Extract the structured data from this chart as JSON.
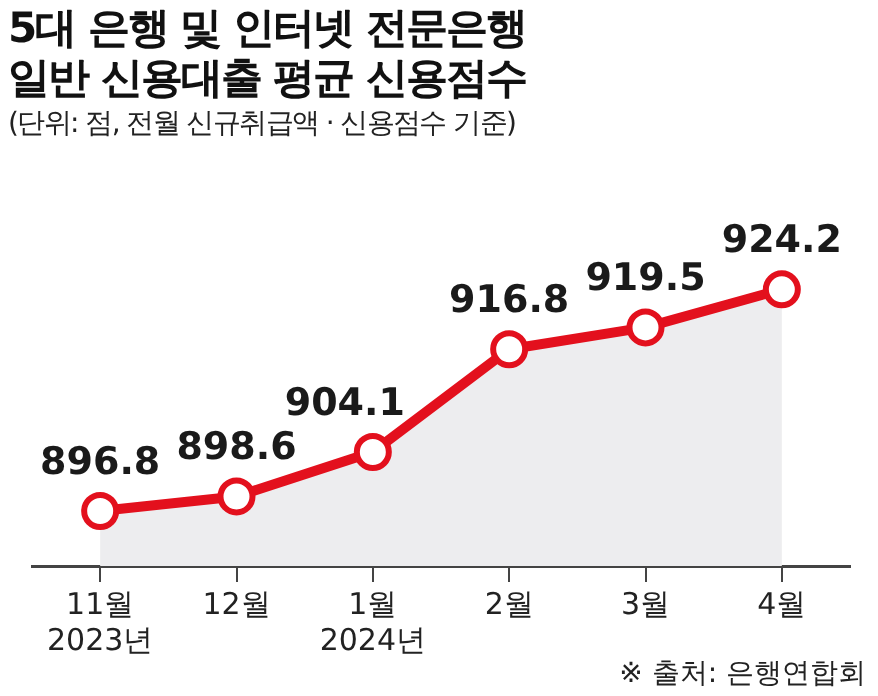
{
  "chart_data": {
    "type": "area",
    "title": "5대 은행 및 인터넷 전문은행\n일반 신용대출 평균 신용점수",
    "subtitle": "(단위: 점, 전월 신규취급액 · 신용점수 기준)",
    "categories": [
      "11월\n2023년",
      "12월",
      "1월\n2024년",
      "2월",
      "3월",
      "4월"
    ],
    "series": [
      {
        "color": "#e3101d",
        "values": [
          896.8,
          898.6,
          904.1,
          916.8,
          919.5,
          924.2
        ]
      }
    ],
    "tick_labels": "x",
    "grid": false,
    "legend": false,
    "marker": "circle",
    "data_labels": true,
    "annotations": [
      "※ 출처: 은행연합회"
    ]
  }
}
